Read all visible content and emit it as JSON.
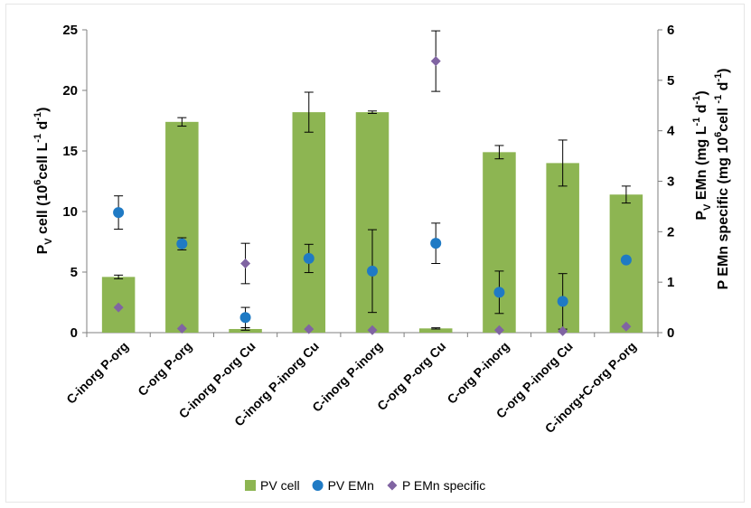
{
  "chart_data": {
    "type": "bar",
    "categories": [
      "C-inorg P-org",
      "C-org P-org",
      "C-inorg P-org Cu",
      "C-inorg P-inorg Cu",
      "C-inorg P-inorg",
      "C-org P-org Cu",
      "C-org P-inorg",
      "C-org P-inorg Cu",
      "C-inorg+C-org P-org"
    ],
    "left_axis": {
      "label_main": "P",
      "label_sub": "V",
      "label_rest": " cell (10",
      "label_sup": "6",
      "label_rest2": "cell L",
      "label_sup2": "-1",
      "label_rest3": " d",
      "label_sup3": "-1",
      "label_end": ")",
      "ylim": [
        0,
        25
      ],
      "ticks": [
        0,
        5,
        10,
        15,
        20,
        25
      ]
    },
    "right_axis": {
      "label1_main": "P",
      "label1_sub": "V",
      "label1_rest": " EMn (mg L",
      "label1_sup": "-1",
      "label1_rest2": " d",
      "label1_sup2": "-1",
      "label1_end": ")",
      "label2_main": "P EMn specific (mg 10",
      "label2_sup": "6",
      "label2_rest": "cell ",
      "label2_sup2": "-1",
      "label2_rest2": " d",
      "label2_sup3": "-1",
      "label2_end": ")",
      "ylim": [
        0,
        6
      ],
      "ticks": [
        0,
        1,
        2,
        3,
        4,
        5,
        6
      ]
    },
    "series": [
      {
        "name": "PV cell",
        "kind": "bar",
        "axis": "left",
        "color": "#8db552",
        "values": [
          4.6,
          17.4,
          0.3,
          18.2,
          18.2,
          0.35,
          14.9,
          14.0,
          11.4
        ],
        "errors": [
          0.15,
          0.35,
          0.1,
          1.65,
          0.1,
          0.05,
          0.55,
          1.9,
          0.7
        ]
      },
      {
        "name": "PV EMn",
        "kind": "point",
        "axis": "right",
        "color": "#1f7ac4",
        "values": [
          2.38,
          1.76,
          0.3,
          1.47,
          1.22,
          1.77,
          0.8,
          0.62,
          1.44
        ],
        "errors": [
          0.33,
          0.12,
          0.2,
          0.28,
          0.82,
          0.4,
          0.42,
          0.55,
          0
        ]
      },
      {
        "name": "P EMn specific",
        "kind": "point",
        "axis": "right",
        "color": "#8064a2",
        "values": [
          0.5,
          0.08,
          1.37,
          0.07,
          0.05,
          5.38,
          0.05,
          0.03,
          0.12
        ],
        "errors": [
          0,
          0,
          0.4,
          0,
          0,
          0.6,
          0,
          0,
          0
        ]
      }
    ],
    "legend_position": "bottom",
    "grid": false
  }
}
